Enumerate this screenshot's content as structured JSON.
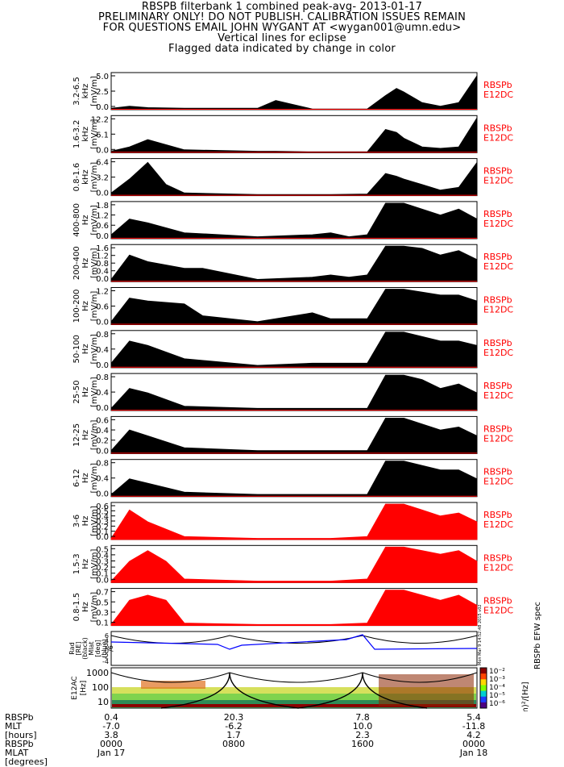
{
  "header": {
    "title": "RBSPB filterbank 1 combined peak-avg- 2013-01-17",
    "line2": "PRELIMINARY ONLY! DO NOT PUBLISH. CALIBRATION ISSUES REMAIN",
    "line3": "FOR QUESTIONS EMAIL JOHN WYGANT AT <wygan001@umn.edu>",
    "line4": "Vertical lines for eclipse",
    "line5": "Flagged data indicated by change in color"
  },
  "colors": {
    "black": "#000000",
    "red": "#ff0000",
    "blue": "#0000ff"
  },
  "chart_data": [
    {
      "type": "area",
      "band": "3.2-6.5 kHz",
      "ylabel_lines": [
        "3.2-6.5",
        "kHz",
        "[mV/m]"
      ],
      "yticks": [
        "5.0",
        "2.5",
        "0.0"
      ],
      "ylim": [
        0,
        5.0
      ],
      "legend": [
        "RBSPb",
        "E12DC"
      ],
      "series": [
        {
          "name": "peak",
          "color": "black",
          "x": [
            0,
            0.05,
            0.1,
            0.2,
            0.4,
            0.45,
            0.55,
            0.65,
            0.7,
            0.75,
            0.78,
            0.8,
            0.85,
            0.9,
            0.95,
            1.0
          ],
          "values": [
            0.2,
            0.5,
            0.3,
            0.2,
            0.2,
            1.3,
            0.1,
            0.1,
            0.1,
            2.0,
            3.0,
            2.5,
            1.0,
            0.5,
            1.0,
            4.8
          ]
        }
      ]
    },
    {
      "type": "area",
      "band": "1.6-3.2 kHz",
      "ylabel_lines": [
        "1.6-3.2",
        "kHz",
        "[mV/m]"
      ],
      "yticks": [
        "12.2",
        "6.1",
        "0.0"
      ],
      "ylim": [
        0,
        12.2
      ],
      "legend": [
        "RBSPb",
        "E12DC"
      ],
      "series": [
        {
          "name": "peak",
          "color": "black",
          "x": [
            0,
            0.05,
            0.1,
            0.2,
            0.4,
            0.45,
            0.55,
            0.65,
            0.7,
            0.75,
            0.78,
            0.8,
            0.85,
            0.9,
            0.95,
            1.0
          ],
          "values": [
            0.5,
            2.0,
            4.5,
            1.0,
            0.5,
            0.5,
            0.3,
            0.3,
            0.3,
            8.0,
            7.0,
            5.0,
            2.0,
            1.5,
            2.0,
            12.0
          ]
        }
      ]
    },
    {
      "type": "area",
      "band": "0.8-1.6 kHz",
      "ylabel_lines": [
        "0.8-1.6",
        "kHz",
        "[mV/m]"
      ],
      "yticks": [
        "6.4",
        "3.2",
        "0.0"
      ],
      "ylim": [
        0,
        6.4
      ],
      "legend": [
        "RBSPb",
        "E12DC"
      ],
      "series": [
        {
          "name": "peak",
          "color": "black",
          "x": [
            0,
            0.05,
            0.1,
            0.15,
            0.2,
            0.4,
            0.6,
            0.7,
            0.75,
            0.78,
            0.8,
            0.85,
            0.9,
            0.95,
            1.0
          ],
          "values": [
            0.5,
            3.0,
            6.0,
            2.0,
            0.5,
            0.2,
            0.2,
            0.3,
            4.0,
            3.5,
            3.0,
            2.0,
            1.0,
            1.5,
            6.0
          ]
        }
      ]
    },
    {
      "type": "area",
      "band": "400-800 Hz",
      "ylabel_lines": [
        "400-800",
        "Hz",
        "[mV/m]"
      ],
      "yticks": [
        "1.8",
        "1.2",
        "0.6",
        "0.0"
      ],
      "ylim": [
        0,
        1.8
      ],
      "legend": [
        "RBSPb",
        "E12DC"
      ],
      "series": [
        {
          "name": "peak",
          "color": "black",
          "x": [
            0,
            0.05,
            0.1,
            0.2,
            0.4,
            0.55,
            0.6,
            0.65,
            0.7,
            0.75,
            0.8,
            0.85,
            0.9,
            0.95,
            1.0
          ],
          "values": [
            0.2,
            1.0,
            0.8,
            0.3,
            0.1,
            0.2,
            0.3,
            0.1,
            0.2,
            1.8,
            1.8,
            1.5,
            1.2,
            1.5,
            1.0
          ]
        }
      ]
    },
    {
      "type": "area",
      "band": "200-400 Hz",
      "ylabel_lines": [
        "200-400",
        "Hz",
        "[mV/m]"
      ],
      "yticks": [
        "1.6",
        "1.2",
        "0.8",
        "0.4",
        "0.0"
      ],
      "ylim": [
        0,
        1.6
      ],
      "legend": [
        "RBSPb",
        "E12DC"
      ],
      "series": [
        {
          "name": "peak",
          "color": "black",
          "x": [
            0,
            0.05,
            0.1,
            0.2,
            0.25,
            0.4,
            0.55,
            0.6,
            0.65,
            0.7,
            0.75,
            0.8,
            0.85,
            0.9,
            0.95,
            1.0
          ],
          "values": [
            0.1,
            1.2,
            0.9,
            0.6,
            0.6,
            0.1,
            0.2,
            0.3,
            0.2,
            0.3,
            1.6,
            1.6,
            1.5,
            1.2,
            1.4,
            1.0
          ]
        }
      ]
    },
    {
      "type": "area",
      "band": "100-200 Hz",
      "ylabel_lines": [
        "100-200",
        "Hz",
        "[mV/m]"
      ],
      "yticks": [
        "1.2",
        "0.6",
        "0.0"
      ],
      "ylim": [
        0,
        1.2
      ],
      "legend": [
        "RBSPb",
        "E12DC"
      ],
      "series": [
        {
          "name": "peak",
          "color": "black",
          "x": [
            0,
            0.05,
            0.1,
            0.2,
            0.25,
            0.4,
            0.55,
            0.6,
            0.65,
            0.7,
            0.75,
            0.8,
            0.85,
            0.9,
            0.95,
            1.0
          ],
          "values": [
            0.1,
            0.9,
            0.8,
            0.7,
            0.3,
            0.1,
            0.4,
            0.2,
            0.2,
            0.2,
            1.2,
            1.2,
            1.1,
            1.0,
            1.0,
            0.8
          ]
        }
      ]
    },
    {
      "type": "area",
      "band": "50-100 Hz",
      "ylabel_lines": [
        "50-100",
        "Hz",
        "[mV/m]"
      ],
      "yticks": [
        "0.8",
        "0.4",
        "0.0"
      ],
      "ylim": [
        0,
        0.8
      ],
      "legend": [
        "RBSPb",
        "E12DC"
      ],
      "series": [
        {
          "name": "peak",
          "color": "black",
          "x": [
            0,
            0.05,
            0.1,
            0.2,
            0.4,
            0.55,
            0.6,
            0.7,
            0.75,
            0.8,
            0.85,
            0.9,
            0.95,
            1.0
          ],
          "values": [
            0.1,
            0.6,
            0.5,
            0.2,
            0.05,
            0.1,
            0.1,
            0.1,
            0.8,
            0.8,
            0.7,
            0.6,
            0.6,
            0.5
          ]
        }
      ]
    },
    {
      "type": "area",
      "band": "25-50 Hz",
      "ylabel_lines": [
        "25-50",
        "Hz",
        "[mV/m]"
      ],
      "yticks": [
        "0.8",
        "0.4",
        "0.0"
      ],
      "ylim": [
        0,
        0.8
      ],
      "legend": [
        "RBSPb",
        "E12DC"
      ],
      "series": [
        {
          "name": "peak",
          "color": "black",
          "x": [
            0,
            0.05,
            0.1,
            0.2,
            0.4,
            0.6,
            0.7,
            0.75,
            0.8,
            0.85,
            0.9,
            0.95,
            1.0
          ],
          "values": [
            0.05,
            0.5,
            0.4,
            0.1,
            0.05,
            0.05,
            0.05,
            0.8,
            0.8,
            0.7,
            0.5,
            0.6,
            0.4
          ]
        }
      ]
    },
    {
      "type": "area",
      "band": "12-25 Hz",
      "ylabel_lines": [
        "12-25",
        "Hz",
        "[mV/m]"
      ],
      "yticks": [
        "0.6",
        "0.4",
        "0.2",
        "0.0"
      ],
      "ylim": [
        0,
        0.6
      ],
      "legend": [
        "RBSPb",
        "E12DC"
      ],
      "series": [
        {
          "name": "peak",
          "color": "black",
          "x": [
            0,
            0.05,
            0.1,
            0.2,
            0.4,
            0.6,
            0.7,
            0.75,
            0.8,
            0.85,
            0.9,
            0.95,
            1.0
          ],
          "values": [
            0.05,
            0.4,
            0.3,
            0.1,
            0.05,
            0.05,
            0.05,
            0.6,
            0.6,
            0.5,
            0.4,
            0.45,
            0.3
          ]
        }
      ]
    },
    {
      "type": "area",
      "band": "6-12 Hz",
      "ylabel_lines": [
        "6-12",
        "Hz",
        "[mV/m]"
      ],
      "yticks": [
        "0.8",
        "0.4",
        "0.0"
      ],
      "ylim": [
        0,
        0.8
      ],
      "legend": [
        "RBSPb",
        "E12DC"
      ],
      "series": [
        {
          "name": "peak",
          "color": "black",
          "x": [
            0,
            0.05,
            0.1,
            0.2,
            0.4,
            0.6,
            0.7,
            0.75,
            0.8,
            0.85,
            0.9,
            0.95,
            1.0
          ],
          "values": [
            0.05,
            0.4,
            0.3,
            0.1,
            0.05,
            0.05,
            0.05,
            0.8,
            0.8,
            0.7,
            0.6,
            0.6,
            0.4
          ]
        }
      ]
    },
    {
      "type": "area",
      "band": "3-6 Hz",
      "ylabel_lines": [
        "3-6",
        "Hz",
        "[mV/m]"
      ],
      "yticks": [
        "0.6",
        "0.5",
        "0.4",
        "0.3",
        "0.2",
        "0.1",
        "0.0"
      ],
      "ylim": [
        0,
        0.6
      ],
      "legend": [
        "RBSPb",
        "E12DC"
      ],
      "series": [
        {
          "name": "peak",
          "color": "red",
          "x": [
            0,
            0.05,
            0.1,
            0.2,
            0.4,
            0.6,
            0.7,
            0.75,
            0.8,
            0.85,
            0.9,
            0.95,
            1.0
          ],
          "values": [
            0.02,
            0.5,
            0.3,
            0.05,
            0.02,
            0.02,
            0.05,
            0.6,
            0.6,
            0.5,
            0.4,
            0.45,
            0.3
          ]
        }
      ]
    },
    {
      "type": "area",
      "band": "1.5-3 Hz",
      "ylabel_lines": [
        "1.5-3",
        "Hz",
        "[mV/m]"
      ],
      "yticks": [
        "0.5",
        "0.4",
        "0.3",
        "0.2",
        "0.1",
        "0.0"
      ],
      "ylim": [
        0,
        0.5
      ],
      "legend": [
        "RBSPb",
        "E12DC"
      ],
      "series": [
        {
          "name": "peak",
          "color": "red",
          "x": [
            0,
            0.05,
            0.1,
            0.15,
            0.2,
            0.4,
            0.6,
            0.7,
            0.75,
            0.8,
            0.85,
            0.9,
            0.95,
            1.0
          ],
          "values": [
            0.02,
            0.3,
            0.45,
            0.3,
            0.05,
            0.02,
            0.02,
            0.05,
            0.5,
            0.5,
            0.45,
            0.4,
            0.45,
            0.3
          ]
        }
      ]
    },
    {
      "type": "area",
      "band": "0.8-1.5 Hz",
      "ylabel_lines": [
        "0.8-1.5",
        "Hz",
        "[mV/m]"
      ],
      "yticks": [
        "0.7",
        "0.5",
        "0.3",
        "0.1"
      ],
      "ylim": [
        0,
        0.7
      ],
      "legend": [
        "RBSPb",
        "E12DC"
      ],
      "series": [
        {
          "name": "peak",
          "color": "red",
          "x": [
            0,
            0.05,
            0.1,
            0.15,
            0.2,
            0.4,
            0.6,
            0.7,
            0.75,
            0.8,
            0.85,
            0.9,
            0.95,
            1.0
          ],
          "values": [
            0.02,
            0.5,
            0.6,
            0.5,
            0.05,
            0.02,
            0.02,
            0.05,
            0.7,
            0.7,
            0.6,
            0.5,
            0.6,
            0.4
          ]
        }
      ]
    }
  ],
  "orbit_panel": {
    "ylabel_lines": [
      "Rad",
      "[RE]",
      "(black)",
      "Mlat",
      "[deg]",
      "(blue)",
      "/6"
    ],
    "yticks": [
      "6",
      "4",
      "2",
      "0",
      "-2",
      "-4"
    ],
    "stamp": "Mon Mar 9 14:52:48 2015 v02"
  },
  "spec_panel": {
    "ylabel_lines": [
      "E12AC",
      "[Hz]"
    ],
    "yticks": [
      "1000",
      "100",
      "10"
    ],
    "colorbar_label": "(mV/m)²/[Hz]",
    "colorbar_title": "RBSPb EFW spec",
    "colorbar_ticks": [
      "10⁻²",
      "10⁻³",
      "10⁻⁴",
      "10⁻⁵",
      "10⁻⁶"
    ]
  },
  "footer": {
    "row_labels": [
      "RBSPb",
      "MLT",
      "[hours]",
      "RBSPb",
      "MLAT",
      "[degrees]"
    ],
    "columns": [
      {
        "lines": [
          "0.4",
          "-7.0",
          "3.8",
          "0000",
          "Jan 17"
        ]
      },
      {
        "lines": [
          "20.3",
          "-6.2",
          "1.7",
          "0800",
          ""
        ]
      },
      {
        "lines": [
          "7.8",
          "10.0",
          "2.3",
          "1600",
          ""
        ]
      },
      {
        "lines": [
          "5.4",
          "-11.8",
          "4.2",
          "0000",
          "Jan 18"
        ]
      }
    ]
  }
}
